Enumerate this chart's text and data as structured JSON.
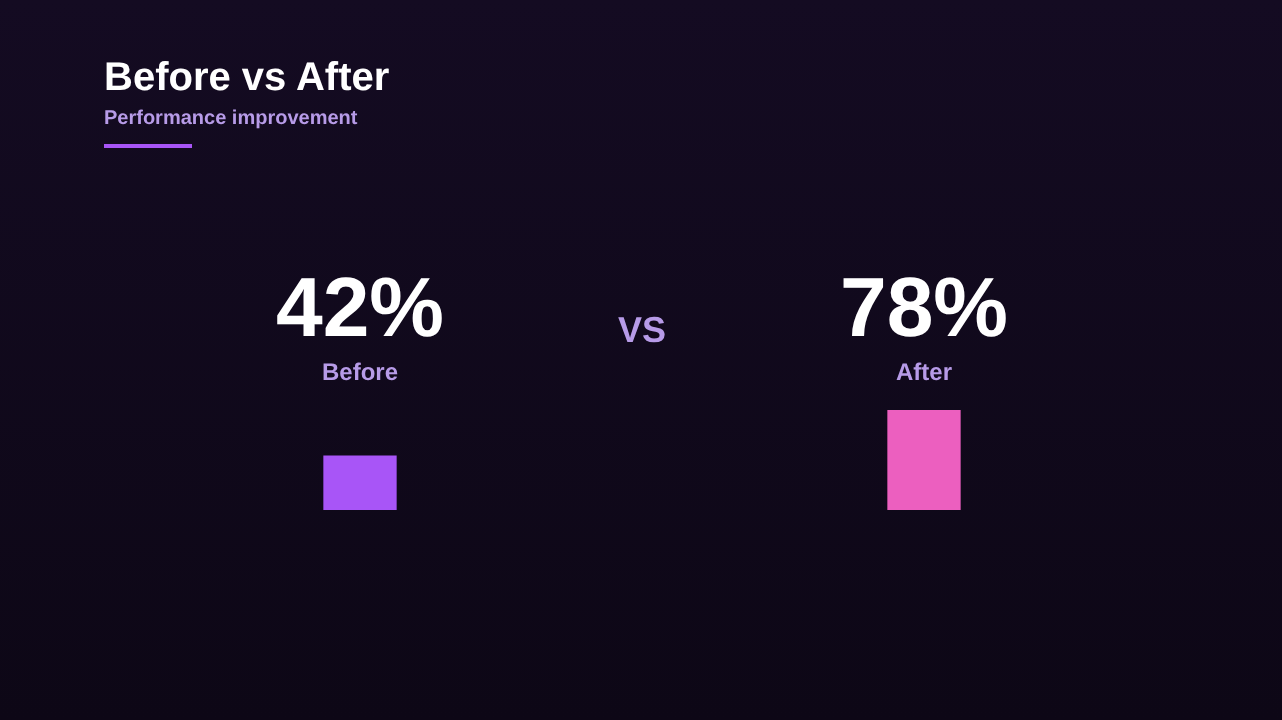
{
  "chart_data": {
    "type": "bar",
    "title": "Before vs After",
    "subtitle": "Performance improvement",
    "categories": [
      "Before",
      "After"
    ],
    "values": [
      42,
      78
    ],
    "colors": [
      "#a855f7",
      "#ec5fbf"
    ],
    "value_labels": [
      "42%",
      "78%"
    ],
    "annotations": [
      "VS"
    ],
    "grid": false,
    "legend": false,
    "tick_labels": false
  }
}
